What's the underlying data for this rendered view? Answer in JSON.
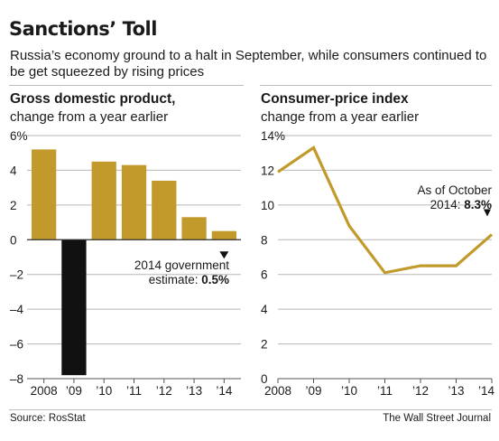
{
  "header": {
    "title": "Sanctions’ Toll",
    "subtitle": "Russia’s economy ground to a halt in September, while consumers continued to be get squeezed by rising prices"
  },
  "footer": {
    "source": "Source: RosStat",
    "publisher": "The Wall Street Journal"
  },
  "colors": {
    "gold": "#c19a2b",
    "negative": "#111111",
    "grid": "#b7b7b7",
    "axis": "#555555"
  },
  "chart_data": [
    {
      "type": "bar",
      "title": "Gross domestic product,",
      "subtitle": "change from a year earlier",
      "categories": [
        "2008",
        "’09",
        "’10",
        "’11",
        "’12",
        "’13",
        "’14"
      ],
      "values": [
        5.2,
        -7.8,
        4.5,
        4.3,
        3.4,
        1.3,
        0.5
      ],
      "y_ticks": [
        6,
        4,
        2,
        0,
        -2,
        -4,
        -6,
        -8
      ],
      "y_tick_labels": [
        "6%",
        "4",
        "2",
        "0",
        "–2",
        "–4",
        "–6",
        "–8"
      ],
      "ylim": [
        -8,
        6
      ],
      "grid": true,
      "annotation": {
        "line1": "2014 government",
        "line2_prefix": "estimate: ",
        "line2_value": "0.5%"
      }
    },
    {
      "type": "line",
      "title": "Consumer-price index",
      "subtitle": "change from a year earlier",
      "x": [
        "2008",
        "’09",
        "’10",
        "’11",
        "’12",
        "’13",
        "’14"
      ],
      "values": [
        11.9,
        13.3,
        8.8,
        6.1,
        6.5,
        6.5,
        8.3
      ],
      "y_ticks": [
        14,
        12,
        10,
        8,
        6,
        4,
        2,
        0
      ],
      "y_tick_labels": [
        "14%",
        "12",
        "10",
        "8",
        "6",
        "4",
        "2",
        "0"
      ],
      "ylim": [
        0,
        14
      ],
      "grid": true,
      "annotation": {
        "line1": "As of October",
        "line2_prefix": "2014: ",
        "line2_value": "8.3%"
      }
    }
  ]
}
